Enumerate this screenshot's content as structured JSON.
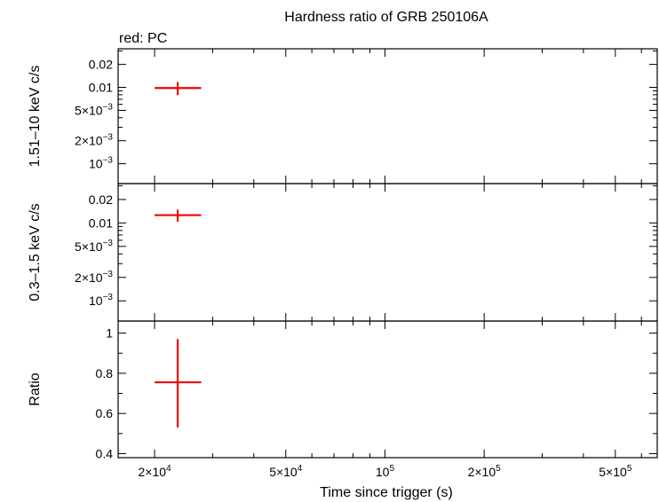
{
  "chart_data": {
    "type": "scatter",
    "title": "Hardness ratio of GRB 250106A",
    "legend_text": "red: PC",
    "xlabel": "Time since trigger (s)",
    "x_scale": "log",
    "xlim": [
      15500,
      670000
    ],
    "x_major_ticks": [
      {
        "value": 20000,
        "label": "2×10",
        "sup": "4"
      },
      {
        "value": 50000,
        "label": "5×10",
        "sup": "4"
      },
      {
        "value": 100000,
        "label": "10",
        "sup": "5"
      },
      {
        "value": 200000,
        "label": "2×10",
        "sup": "5"
      },
      {
        "value": 500000,
        "label": "5×10",
        "sup": "5"
      }
    ],
    "x_minor_ticks": [
      30000,
      40000,
      60000,
      70000,
      80000,
      90000,
      300000,
      400000,
      600000
    ],
    "panels": [
      {
        "name": "hard-band",
        "ylabel": "1.51–10 keV c/s",
        "y_scale": "log",
        "ylim": [
          0.00055,
          0.032
        ],
        "y_ticks": [
          {
            "value": 0.02,
            "label": "0.02"
          },
          {
            "value": 0.01,
            "label": "0.01"
          },
          {
            "value": 0.005,
            "label": "5×10",
            "sup": "−3"
          },
          {
            "value": 0.002,
            "label": "2×10",
            "sup": "−3"
          },
          {
            "value": 0.001,
            "label": "10",
            "sup": "−3"
          }
        ],
        "y_minor_ticks": [
          0.003,
          0.004,
          0.006,
          0.007,
          0.008,
          0.009,
          0.03
        ],
        "series": [
          {
            "name": "PC",
            "color": "#ee0000",
            "points": [
              {
                "x": 23500,
                "y": 0.0098,
                "xerr_lo": 3500,
                "xerr_hi": 4200,
                "yerr_lo": 0.0019,
                "yerr_hi": 0.0019
              }
            ]
          }
        ]
      },
      {
        "name": "soft-band",
        "ylabel": "0.3–1.5 keV c/s",
        "y_scale": "log",
        "ylim": [
          0.00055,
          0.032
        ],
        "y_ticks": [
          {
            "value": 0.02,
            "label": "0.02"
          },
          {
            "value": 0.01,
            "label": "0.01"
          },
          {
            "value": 0.005,
            "label": "5×10",
            "sup": "−3"
          },
          {
            "value": 0.002,
            "label": "2×10",
            "sup": "−3"
          },
          {
            "value": 0.001,
            "label": "10",
            "sup": "−3"
          }
        ],
        "y_minor_ticks": [
          0.003,
          0.004,
          0.006,
          0.007,
          0.008,
          0.009,
          0.03
        ],
        "series": [
          {
            "name": "PC",
            "color": "#ee0000",
            "points": [
              {
                "x": 23500,
                "y": 0.0126,
                "xerr_lo": 3500,
                "xerr_hi": 4200,
                "yerr_lo": 0.0022,
                "yerr_hi": 0.0022
              }
            ]
          }
        ]
      },
      {
        "name": "ratio",
        "ylabel": "Ratio",
        "y_scale": "linear",
        "ylim": [
          0.38,
          1.06
        ],
        "y_ticks": [
          {
            "value": 0.4,
            "label": "0.4"
          },
          {
            "value": 0.6,
            "label": "0.6"
          },
          {
            "value": 0.8,
            "label": "0.8"
          },
          {
            "value": 1.0,
            "label": "1"
          }
        ],
        "y_minor_ticks": [
          0.5,
          0.7,
          0.9
        ],
        "series": [
          {
            "name": "PC",
            "color": "#ee0000",
            "points": [
              {
                "x": 23500,
                "y": 0.755,
                "xerr_lo": 3500,
                "xerr_hi": 4200,
                "yerr_lo": 0.225,
                "yerr_hi": 0.215
              }
            ]
          }
        ]
      }
    ]
  }
}
